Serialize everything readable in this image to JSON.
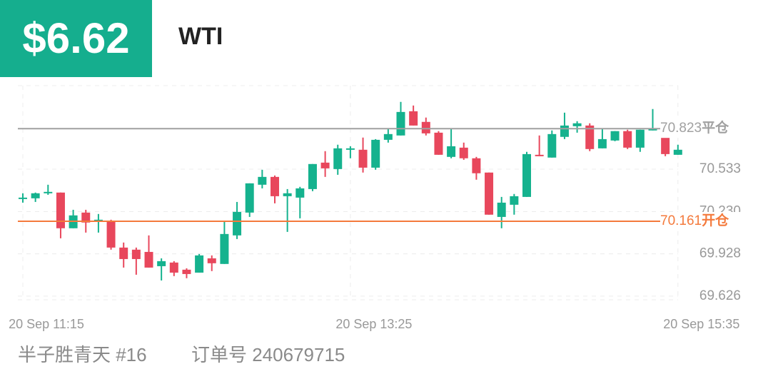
{
  "header": {
    "price": "$6.62",
    "symbol": "WTI"
  },
  "chart_data": {
    "type": "candlestick",
    "categories": [
      "20 Sep 11:15",
      null,
      null,
      null,
      null,
      null,
      null,
      null,
      null,
      null,
      null,
      null,
      null,
      null,
      null,
      null,
      null,
      null,
      null,
      null,
      null,
      null,
      null,
      null,
      null,
      null,
      "20 Sep 13:25",
      null,
      null,
      null,
      null,
      null,
      null,
      null,
      null,
      null,
      null,
      null,
      null,
      null,
      null,
      null,
      null,
      null,
      null,
      null,
      null,
      null,
      null,
      null,
      null,
      null,
      "20 Sep 15:35"
    ],
    "open": [
      70.325,
      70.325,
      70.361,
      70.366,
      70.111,
      70.223,
      70.162,
      70.162,
      69.973,
      69.958,
      69.942,
      69.84,
      69.866,
      69.815,
      69.794,
      69.896,
      69.856,
      70.06,
      70.223,
      70.422,
      70.478,
      70.34,
      70.33,
      70.391,
      70.58,
      70.534,
      70.672,
      70.672,
      70.544,
      70.743,
      70.774,
      70.947,
      70.871,
      70.794,
      70.621,
      70.687,
      70.611,
      70.509,
      70.192,
      70.279,
      70.335,
      70.636,
      70.616,
      70.764,
      70.84,
      70.845,
      70.682,
      70.738,
      70.805,
      70.687,
      70.81,
      70.764,
      70.636
    ],
    "high": [
      70.361,
      70.366,
      70.422,
      70.366,
      70.243,
      70.243,
      70.213,
      70.172,
      70.009,
      69.973,
      70.06,
      69.896,
      69.876,
      69.825,
      69.927,
      69.917,
      70.162,
      70.299,
      70.432,
      70.529,
      70.488,
      70.391,
      70.407,
      70.57,
      70.662,
      70.708,
      70.697,
      70.759,
      70.748,
      70.82,
      71.014,
      70.988,
      70.902,
      70.805,
      70.825,
      70.723,
      70.621,
      70.509,
      70.335,
      70.356,
      70.657,
      70.774,
      70.81,
      70.937,
      70.876,
      70.861,
      70.825,
      70.805,
      70.815,
      70.815,
      70.963,
      70.764,
      70.708
    ],
    "low": [
      70.294,
      70.299,
      70.35,
      70.039,
      70.111,
      70.08,
      70.08,
      69.958,
      69.83,
      69.779,
      69.83,
      69.738,
      69.769,
      69.754,
      69.794,
      69.805,
      69.856,
      70.034,
      70.192,
      70.396,
      70.289,
      70.085,
      70.182,
      70.376,
      70.478,
      70.493,
      70.611,
      70.509,
      70.529,
      70.723,
      70.774,
      70.845,
      70.774,
      70.636,
      70.611,
      70.6,
      70.458,
      70.208,
      70.111,
      70.208,
      70.335,
      70.626,
      70.616,
      70.748,
      70.794,
      70.662,
      70.682,
      70.733,
      70.677,
      70.657,
      70.81,
      70.626,
      70.636
    ],
    "close": [
      70.33,
      70.361,
      70.371,
      70.111,
      70.203,
      70.152,
      70.172,
      69.973,
      69.891,
      69.891,
      69.83,
      69.876,
      69.794,
      69.784,
      69.917,
      69.861,
      70.07,
      70.228,
      70.432,
      70.478,
      70.34,
      70.361,
      70.396,
      70.57,
      70.539,
      70.682,
      70.682,
      70.544,
      70.743,
      70.784,
      70.942,
      70.845,
      70.789,
      70.636,
      70.697,
      70.611,
      70.504,
      70.208,
      70.294,
      70.34,
      70.641,
      70.626,
      70.784,
      70.845,
      70.861,
      70.677,
      70.748,
      70.805,
      70.687,
      70.815,
      70.82,
      70.641,
      70.672
    ],
    "up_color": "#15b28e",
    "down_color": "#e8475c",
    "ylim": [
      69.6,
      71.13
    ],
    "yticks": [
      69.626,
      69.928,
      {
        "value": 70.23,
        "label": "70.230"
      },
      70.533
    ],
    "grid": true,
    "lines": [
      {
        "value": 70.823,
        "label": "平仓",
        "color": "#a0a0a0"
      },
      {
        "value": 70.161,
        "label": "开仓",
        "color": "#f47a3c"
      }
    ]
  },
  "footer": {
    "user": "半子胜青天 #16",
    "order": "订单号 240679715"
  }
}
